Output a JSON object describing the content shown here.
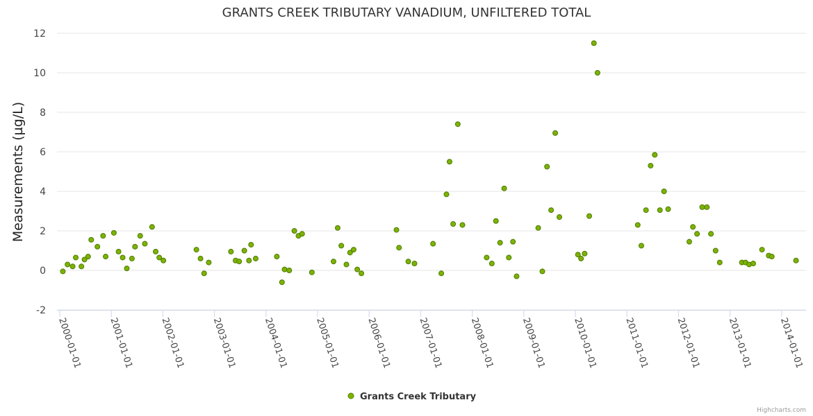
{
  "chart_data": {
    "type": "scatter",
    "title": "GRANTS CREEK TRIBUTARY VANADIUM, UNFILTERED TOTAL",
    "xlabel": "",
    "ylabel": "Measurements (µg/L)",
    "ylim": [
      -2,
      12
    ],
    "yticks": [
      -2,
      0,
      2,
      4,
      6,
      8,
      10,
      12
    ],
    "xlim": [
      2000.0,
      2014.3
    ],
    "xticks": [
      2000,
      2001,
      2002,
      2003,
      2004,
      2005,
      2006,
      2007,
      2008,
      2009,
      2010,
      2011,
      2012,
      2013,
      2014
    ],
    "xtick_labels": [
      "2000-01-01",
      "2001-01-01",
      "2002-01-01",
      "2003-01-01",
      "2004-01-01",
      "2005-01-01",
      "2006-01-01",
      "2007-01-01",
      "2008-01-01",
      "2009-01-01",
      "2010-01-01",
      "2011-01-01",
      "2012-01-01",
      "2013-01-01",
      "2014-01-01"
    ],
    "grid": true,
    "legend_position": "bottom-center",
    "series": [
      {
        "name": "Grants Creek Tributary",
        "color": "#7cb305",
        "x": [
          2000.06,
          2000.15,
          2000.25,
          2000.31,
          2000.42,
          2000.48,
          2000.55,
          2000.61,
          2000.73,
          2000.84,
          2000.89,
          2001.05,
          2001.14,
          2001.22,
          2001.3,
          2001.4,
          2001.46,
          2001.56,
          2001.65,
          2001.79,
          2001.86,
          2001.93,
          2002.01,
          2002.65,
          2002.73,
          2002.8,
          2002.89,
          2003.32,
          2003.41,
          2003.48,
          2003.58,
          2003.67,
          2003.71,
          2003.8,
          2004.21,
          2004.31,
          2004.36,
          2004.45,
          2004.55,
          2004.63,
          2004.7,
          2004.89,
          2005.31,
          2005.39,
          2005.46,
          2005.56,
          2005.63,
          2005.7,
          2005.77,
          2005.85,
          2006.53,
          2006.58,
          2006.76,
          2006.88,
          2007.24,
          2007.4,
          2007.5,
          2007.56,
          2007.63,
          2007.72,
          2007.81,
          2008.28,
          2008.38,
          2008.46,
          2008.54,
          2008.62,
          2008.71,
          2008.79,
          2008.86,
          2009.28,
          2009.36,
          2009.45,
          2009.53,
          2009.61,
          2009.69,
          2010.05,
          2010.11,
          2010.18,
          2010.27,
          2010.36,
          2010.43,
          2011.21,
          2011.28,
          2011.37,
          2011.46,
          2011.54,
          2011.64,
          2011.72,
          2011.8,
          2012.21,
          2012.28,
          2012.36,
          2012.46,
          2012.55,
          2012.63,
          2012.72,
          2012.8,
          2013.23,
          2013.3,
          2013.37,
          2013.45,
          2013.62,
          2013.75,
          2013.81,
          2014.28
        ],
        "y": [
          -0.05,
          0.3,
          0.2,
          0.65,
          0.2,
          0.55,
          0.7,
          1.55,
          1.2,
          1.75,
          0.7,
          1.9,
          0.95,
          0.65,
          0.1,
          0.6,
          1.2,
          1.75,
          1.35,
          2.2,
          0.95,
          0.65,
          0.5,
          1.05,
          0.6,
          -0.15,
          0.4,
          0.95,
          0.5,
          0.45,
          1.0,
          0.5,
          1.3,
          0.6,
          0.7,
          -0.6,
          0.05,
          0.0,
          2.0,
          1.75,
          1.85,
          -0.1,
          0.45,
          2.15,
          1.25,
          0.3,
          0.9,
          1.05,
          0.05,
          -0.15,
          2.05,
          1.15,
          0.45,
          0.35,
          1.35,
          -0.15,
          3.85,
          5.5,
          2.35,
          7.4,
          2.3,
          0.65,
          0.35,
          2.5,
          1.4,
          4.15,
          0.65,
          1.45,
          -0.3,
          2.15,
          -0.05,
          5.25,
          3.05,
          6.95,
          2.7,
          0.8,
          0.6,
          0.85,
          2.75,
          11.5,
          10.0,
          2.3,
          1.25,
          3.05,
          5.3,
          5.85,
          3.05,
          4.0,
          3.1,
          1.45,
          2.2,
          1.85,
          3.2,
          3.2,
          1.85,
          1.0,
          0.4,
          0.4,
          0.4,
          0.3,
          0.35,
          1.05,
          0.75,
          0.7,
          0.5
        ]
      }
    ]
  },
  "credits": "Highcharts.com"
}
